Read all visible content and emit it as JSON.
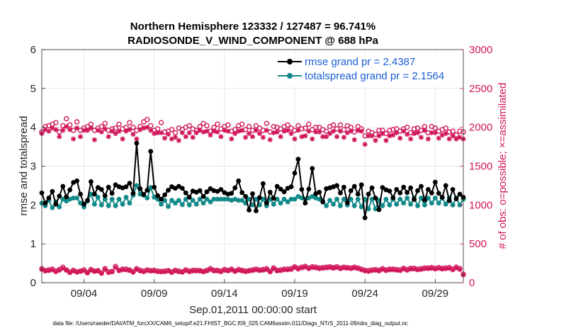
{
  "chart_data": {
    "type": "line",
    "title": [
      "Northern Hemisphere 123332 / 127487 = 96.741%",
      "RADIOSONDE_V_WIND_COMPONENT @ 688 hPa"
    ],
    "xlabel": "Sep.01,2011 00:00:00 start",
    "ylabel": "rmse and totalspread",
    "y2label": "# of obs: o=possible; ×=assimilated",
    "footnote": "data file: /Users/raeder/DAI/ATM_forcXX/CAM6_setup/f.e21.FHIST_BGC.f09_025.CAM6assim.011/Diags_NTrS_2011-09/obs_diag_output.nc",
    "xticks": [
      "09/04",
      "09/09",
      "09/14",
      "09/19",
      "09/24",
      "09/29"
    ],
    "xtick_days": [
      4,
      9,
      14,
      19,
      24,
      29
    ],
    "xlim": [
      1,
      31
    ],
    "ylim": [
      0,
      6
    ],
    "yticks": [
      "0",
      "1",
      "2",
      "3",
      "4",
      "5",
      "6"
    ],
    "y2lim": [
      0,
      3000
    ],
    "y2ticks": [
      "0",
      "500",
      "1000",
      "1500",
      "2000",
      "2500",
      "3000"
    ],
    "grid": true,
    "legend_position": "top-right",
    "colors": {
      "rmse": "#000000",
      "spread": "#128a8a",
      "obs": "#d1165a",
      "legend_text": "#1a5fd6"
    },
    "series": [
      {
        "name": "rmse grand pr = 2.4387",
        "axis": "left",
        "x_start_day": 1,
        "step_days": 0.25,
        "values": [
          2.31,
          2.05,
          2.18,
          2.35,
          2.02,
          2.23,
          2.48,
          2.21,
          2.39,
          2.58,
          2.62,
          2.28,
          2.02,
          2.12,
          2.6,
          2.28,
          2.45,
          2.4,
          2.24,
          2.46,
          2.3,
          2.52,
          2.47,
          2.44,
          2.47,
          2.56,
          2.3,
          3.59,
          2.42,
          2.27,
          2.38,
          3.38,
          2.46,
          2.24,
          2.15,
          2.26,
          2.38,
          2.47,
          2.43,
          2.48,
          2.43,
          2.31,
          2.2,
          2.36,
          2.33,
          2.37,
          2.22,
          2.34,
          2.42,
          2.37,
          2.35,
          2.4,
          2.32,
          2.28,
          2.3,
          2.44,
          2.62,
          2.32,
          2.22,
          1.87,
          2.29,
          1.85,
          2.19,
          2.55,
          2.05,
          2.33,
          2.17,
          2.48,
          2.41,
          2.34,
          2.43,
          2.47,
          2.82,
          3.18,
          2.4,
          2.05,
          2.41,
          2.94,
          2.29,
          2.33,
          2.08,
          2.42,
          2.44,
          2.47,
          2.5,
          2.31,
          2.46,
          2.06,
          2.37,
          2.48,
          2.28,
          2.52,
          1.67,
          2.28,
          2.44,
          2.18,
          1.88,
          2.45,
          2.39,
          2.36,
          2.19,
          2.4,
          2.31,
          2.46,
          2.32,
          2.44,
          2.14,
          2.37,
          2.48,
          2.13,
          2.4,
          2.31,
          2.59,
          2.3,
          2.2,
          2.5,
          2.11,
          2.4,
          2.16,
          2.28,
          2.2
        ]
      },
      {
        "name": "totalspread grand pr = 2.1564",
        "axis": "left",
        "x_start_day": 1,
        "step_days": 0.25,
        "values": [
          2.05,
          1.98,
          2.12,
          1.93,
          2.08,
          1.95,
          2.15,
          2.1,
          2.15,
          2.18,
          2.18,
          2.05,
          1.95,
          2.1,
          2.28,
          2.02,
          2.2,
          2.0,
          2.15,
          1.98,
          2.15,
          1.98,
          2.15,
          2.02,
          2.2,
          2.05,
          2.25,
          2.5,
          2.28,
          2.25,
          2.18,
          2.45,
          2.2,
          2.15,
          2.02,
          2.12,
          1.96,
          2.12,
          2.05,
          2.12,
          2.01,
          2.15,
          2.0,
          2.12,
          2.02,
          2.15,
          2.05,
          2.15,
          2.08,
          2.15,
          2.15,
          2.15,
          2.15,
          2.15,
          2.12,
          2.15,
          2.12,
          2.12,
          2.05,
          2.15,
          2.0,
          2.15,
          2.0,
          2.15,
          1.98,
          2.15,
          2.02,
          2.15,
          2.05,
          2.15,
          2.08,
          2.15,
          2.15,
          2.22,
          2.18,
          2.15,
          2.18,
          2.22,
          2.18,
          2.15,
          2.1,
          1.98,
          2.12,
          2.02,
          2.15,
          1.98,
          2.15,
          2.0,
          2.15,
          1.98,
          2.15,
          1.95,
          2.15,
          1.9,
          2.15,
          1.9,
          2.12,
          1.98,
          2.15,
          2.0,
          2.15,
          2.02,
          2.15,
          2.05,
          2.18,
          2.02,
          2.18,
          1.98,
          2.18,
          2.0,
          2.18,
          2.05,
          2.18,
          2.05,
          2.18,
          2.02,
          2.18,
          2.0,
          2.18,
          2.0,
          2.15
        ]
      },
      {
        "name": "possible",
        "axis": "right",
        "marker": "o",
        "x_start_day": 1,
        "step_days": 0.25,
        "values": [
          1940,
          2010,
          2020,
          2040,
          2060,
          1940,
          2020,
          2110,
          2030,
          1960,
          2070,
          1960,
          1990,
          2010,
          2040,
          1960,
          1990,
          2010,
          2050,
          1960,
          1980,
          1990,
          2040,
          1980,
          2000,
          2060,
          2000,
          1960,
          2010,
          2070,
          2100,
          2020,
          1960,
          1980,
          2060,
          1940,
          1950,
          1970,
          1930,
          1990,
          1970,
          2000,
          2020,
          1980,
          1960,
          2010,
          2050,
          2020,
          1950,
          2000,
          2040,
          1980,
          2010,
          2030,
          1950,
          1970,
          2020,
          2040,
          1970,
          2010,
          1960,
          2020,
          1990,
          1960,
          2050,
          1940,
          2010,
          2000,
          1980,
          2010,
          2030,
          1990,
          1960,
          2020,
          1980,
          1990,
          2040,
          1970,
          2000,
          2000,
          1970,
          1950,
          2010,
          2030,
          1980,
          2030,
          1970,
          2020,
          2000,
          1940,
          2010,
          1980,
          1890,
          1950,
          1930,
          1910,
          1960,
          1960,
          1920,
          1960,
          1970,
          1980,
          1950,
          1980,
          2000,
          1930,
          1980,
          1990,
          1960,
          2010,
          1930,
          2010,
          1990,
          1950,
          1970,
          1990,
          1940,
          1950,
          1900,
          1950,
          1940
        ]
      },
      {
        "name": "assimilated",
        "axis": "right",
        "marker": "*",
        "x_start_day": 1,
        "step_days": 0.25,
        "values": [
          1920,
          1970,
          1950,
          1990,
          1970,
          1880,
          1960,
          2010,
          1970,
          1850,
          1990,
          1880,
          1960,
          1960,
          1990,
          1840,
          1960,
          1940,
          1980,
          1880,
          1950,
          1920,
          1950,
          1850,
          1950,
          1970,
          1910,
          1850,
          1970,
          1990,
          2000,
          1960,
          1920,
          1930,
          1930,
          1860,
          1910,
          1850,
          1870,
          1830,
          1930,
          1880,
          1930,
          1870,
          1930,
          1960,
          1940,
          1950,
          1900,
          1950,
          1940,
          1880,
          1960,
          1950,
          1850,
          1920,
          1950,
          1960,
          1870,
          1920,
          1880,
          1960,
          1920,
          1870,
          1960,
          1840,
          1930,
          1940,
          1880,
          1950,
          1960,
          1920,
          1850,
          1960,
          1880,
          1890,
          1950,
          1850,
          1940,
          1940,
          1880,
          1880,
          1920,
          1950,
          1880,
          1950,
          1870,
          1930,
          1950,
          1840,
          1960,
          1950,
          1780,
          1890,
          1890,
          1830,
          1890,
          1920,
          1830,
          1890,
          1900,
          1930,
          1860,
          1950,
          1910,
          1850,
          1920,
          1930,
          1870,
          1960,
          1850,
          1930,
          1930,
          1860,
          1900,
          1920,
          1850,
          1890,
          1850,
          1870,
          1850
        ]
      },
      {
        "name": "possible low",
        "axis": "right",
        "marker": "o",
        "x_start_day": 1,
        "step_days": 0.25,
        "values": [
          180,
          155,
          165,
          175,
          150,
          170,
          200,
          165,
          135,
          160,
          140,
          150,
          165,
          130,
          170,
          150,
          155,
          125,
          180,
          140,
          145,
          210,
          160,
          175,
          175,
          165,
          140,
          180,
          160,
          150,
          165,
          155,
          160,
          150,
          145,
          150,
          155,
          140,
          160,
          150,
          140,
          165,
          150,
          160,
          160,
          155,
          145,
          160,
          180,
          160,
          160,
          150,
          170,
          160,
          175,
          150,
          170,
          160,
          150,
          155,
          165,
          175,
          165,
          170,
          180,
          145,
          190,
          160,
          165,
          175,
          175,
          180,
          205,
          185,
          200,
          210,
          190,
          205,
          200,
          190,
          195,
          200,
          205,
          195,
          205,
          190,
          200,
          195,
          190,
          200,
          190,
          175,
          160,
          155,
          165,
          170,
          160,
          180,
          165,
          175,
          175,
          170,
          165,
          185,
          170,
          185,
          185,
          175,
          180,
          190,
          190,
          195,
          185,
          195,
          185,
          190,
          195,
          175,
          200,
          180,
          110
        ]
      },
      {
        "name": "assimilated low",
        "axis": "right",
        "marker": "*",
        "x_start_day": 1,
        "step_days": 0.25,
        "values": [
          170,
          150,
          155,
          165,
          140,
          160,
          185,
          160,
          130,
          150,
          135,
          145,
          155,
          125,
          160,
          145,
          150,
          120,
          170,
          130,
          140,
          195,
          155,
          165,
          165,
          155,
          135,
          170,
          150,
          140,
          155,
          150,
          150,
          140,
          140,
          140,
          150,
          130,
          150,
          140,
          135,
          155,
          140,
          150,
          150,
          150,
          140,
          150,
          170,
          150,
          150,
          140,
          160,
          150,
          165,
          145,
          160,
          150,
          140,
          150,
          155,
          165,
          155,
          160,
          170,
          140,
          180,
          150,
          155,
          165,
          165,
          170,
          195,
          175,
          190,
          200,
          180,
          195,
          190,
          180,
          185,
          190,
          195,
          185,
          195,
          180,
          190,
          185,
          180,
          190,
          180,
          165,
          150,
          145,
          155,
          160,
          150,
          170,
          155,
          165,
          165,
          160,
          155,
          175,
          160,
          175,
          175,
          165,
          170,
          180,
          180,
          185,
          175,
          185,
          175,
          180,
          185,
          165,
          190,
          170,
          100
        ]
      }
    ]
  }
}
